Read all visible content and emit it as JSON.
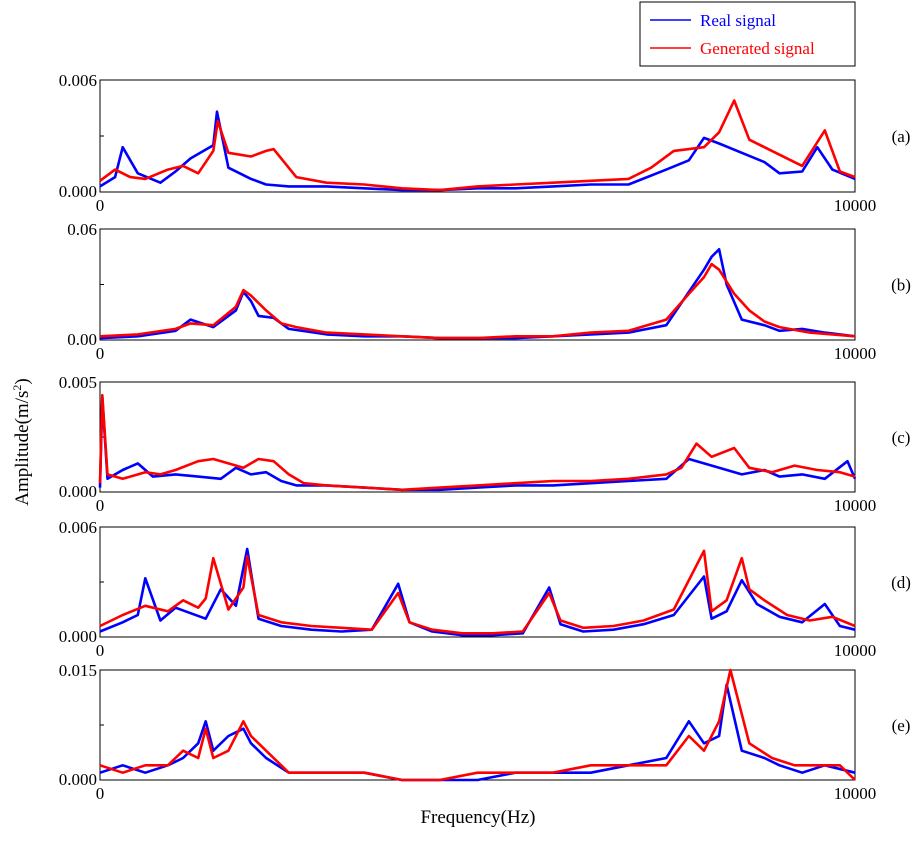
{
  "chart_data": {
    "type": "line",
    "xlabel": "Frequency(Hz)",
    "ylabel": "Amplitude(m/s",
    "ylabel_superscript": "2",
    "ylabel_suffix": ")",
    "legend": {
      "placement": "top-right",
      "entries": [
        {
          "name": "Real signal",
          "color": "#0000ff"
        },
        {
          "name": "Generated signal",
          "color": "#ff0000"
        }
      ]
    },
    "grid": false,
    "panels": [
      {
        "label": "(a)",
        "xlim": [
          0,
          10000
        ],
        "ylim": [
          0,
          0.006
        ],
        "x_ticks": [
          "0",
          "10000"
        ],
        "y_ticks": [
          "0.000",
          "0.006"
        ],
        "series": [
          {
            "name": "Real signal",
            "color": "#0000ff",
            "x": [
              0,
              200,
              300,
              500,
              800,
              1000,
              1200,
              1500,
              1550,
              1700,
              2000,
              2200,
              2500,
              3000,
              3500,
              4000,
              4500,
              5000,
              5500,
              6000,
              6500,
              7000,
              7500,
              7800,
              8000,
              8200,
              8500,
              8800,
              9000,
              9300,
              9500,
              9700,
              10000
            ],
            "y": [
              0.0003,
              0.0008,
              0.0024,
              0.001,
              0.0005,
              0.0011,
              0.0018,
              0.0025,
              0.0043,
              0.0013,
              0.0007,
              0.0004,
              0.0003,
              0.0003,
              0.0002,
              0.0001,
              0.0001,
              0.0002,
              0.0002,
              0.0003,
              0.0004,
              0.0004,
              0.0012,
              0.0017,
              0.0029,
              0.0026,
              0.0021,
              0.0016,
              0.001,
              0.0011,
              0.0024,
              0.0012,
              0.0007
            ]
          },
          {
            "name": "Generated signal",
            "color": "#ff0000",
            "x": [
              0,
              200,
              400,
              600,
              900,
              1100,
              1300,
              1500,
              1560,
              1700,
              2000,
              2200,
              2300,
              2600,
              3000,
              3500,
              4000,
              4500,
              5000,
              5500,
              6000,
              6500,
              7000,
              7300,
              7600,
              8000,
              8200,
              8400,
              8600,
              9000,
              9300,
              9600,
              9800,
              10000
            ],
            "y": [
              0.0006,
              0.0012,
              0.0008,
              0.0007,
              0.0012,
              0.0014,
              0.001,
              0.0022,
              0.0038,
              0.0021,
              0.0019,
              0.0022,
              0.0023,
              0.0008,
              0.0005,
              0.0004,
              0.0002,
              0.0001,
              0.0003,
              0.0004,
              0.0005,
              0.0006,
              0.0007,
              0.0013,
              0.0022,
              0.0024,
              0.0032,
              0.0049,
              0.0028,
              0.002,
              0.0014,
              0.0033,
              0.0011,
              0.0008
            ]
          }
        ]
      },
      {
        "label": "(b)",
        "xlim": [
          0,
          10000
        ],
        "ylim": [
          0,
          0.06
        ],
        "x_ticks": [
          "0",
          "10000"
        ],
        "y_ticks": [
          "0.00",
          "0.06"
        ],
        "series": [
          {
            "name": "Real signal",
            "color": "#0000ff",
            "x": [
              0,
              500,
              1000,
              1200,
              1500,
              1800,
              1900,
              2000,
              2100,
              2300,
              2500,
              3000,
              3500,
              4000,
              4500,
              5000,
              5500,
              6000,
              6500,
              7000,
              7500,
              7800,
              8000,
              8100,
              8200,
              8300,
              8500,
              8800,
              9000,
              9300,
              9600,
              10000
            ],
            "y": [
              0.001,
              0.002,
              0.005,
              0.011,
              0.007,
              0.016,
              0.026,
              0.021,
              0.013,
              0.012,
              0.006,
              0.003,
              0.002,
              0.002,
              0.001,
              0.001,
              0.001,
              0.002,
              0.003,
              0.004,
              0.008,
              0.026,
              0.038,
              0.045,
              0.049,
              0.03,
              0.011,
              0.008,
              0.005,
              0.006,
              0.004,
              0.002
            ]
          },
          {
            "name": "Generated signal",
            "color": "#ff0000",
            "x": [
              0,
              500,
              1000,
              1200,
              1500,
              1800,
              1900,
              2000,
              2200,
              2400,
              2600,
              3000,
              3500,
              4000,
              4500,
              5000,
              5500,
              6000,
              6500,
              7000,
              7500,
              7800,
              8000,
              8100,
              8200,
              8400,
              8600,
              8800,
              9000,
              9400,
              9700,
              10000
            ],
            "y": [
              0.002,
              0.003,
              0.006,
              0.009,
              0.008,
              0.018,
              0.027,
              0.024,
              0.016,
              0.009,
              0.007,
              0.004,
              0.003,
              0.002,
              0.001,
              0.001,
              0.002,
              0.002,
              0.004,
              0.005,
              0.011,
              0.025,
              0.034,
              0.041,
              0.038,
              0.025,
              0.016,
              0.01,
              0.007,
              0.004,
              0.003,
              0.002
            ]
          }
        ]
      },
      {
        "label": "(c)",
        "xlim": [
          0,
          10000
        ],
        "ylim": [
          0,
          0.005
        ],
        "x_ticks": [
          "0",
          "10000"
        ],
        "y_ticks": [
          "0.000",
          "0.005"
        ],
        "series": [
          {
            "name": "Real signal",
            "color": "#0000ff",
            "x": [
              0,
              30,
              100,
              300,
              500,
              700,
              1000,
              1300,
              1600,
              1800,
              2000,
              2200,
              2400,
              2600,
              3000,
              3500,
              4000,
              4500,
              5000,
              5500,
              6000,
              6500,
              7000,
              7500,
              7800,
              8000,
              8200,
              8500,
              8800,
              9000,
              9300,
              9600,
              9900,
              10000
            ],
            "y": [
              0.0002,
              0.0043,
              0.0006,
              0.001,
              0.0013,
              0.0007,
              0.0008,
              0.0007,
              0.0006,
              0.0011,
              0.0008,
              0.0009,
              0.0005,
              0.0003,
              0.0003,
              0.0002,
              0.0001,
              0.0001,
              0.0002,
              0.0003,
              0.0003,
              0.0004,
              0.0005,
              0.0006,
              0.0015,
              0.0013,
              0.0011,
              0.0008,
              0.001,
              0.0007,
              0.0008,
              0.0006,
              0.0014,
              0.0006
            ]
          },
          {
            "name": "Generated signal",
            "color": "#ff0000",
            "x": [
              0,
              30,
              100,
              300,
              600,
              800,
              1000,
              1300,
              1500,
              1700,
              1900,
              2100,
              2300,
              2500,
              2700,
              3000,
              3500,
              4000,
              4500,
              5000,
              5500,
              6000,
              6500,
              7000,
              7500,
              7700,
              7900,
              8100,
              8400,
              8600,
              8900,
              9200,
              9500,
              9800,
              10000
            ],
            "y": [
              0.0004,
              0.0044,
              0.0008,
              0.0006,
              0.0009,
              0.0008,
              0.001,
              0.0014,
              0.0015,
              0.0013,
              0.0011,
              0.0015,
              0.0014,
              0.0008,
              0.0004,
              0.0003,
              0.0002,
              0.0001,
              0.0002,
              0.0003,
              0.0004,
              0.0005,
              0.0005,
              0.0006,
              0.0008,
              0.0011,
              0.0022,
              0.0016,
              0.002,
              0.0011,
              0.0009,
              0.0012,
              0.001,
              0.0009,
              0.0007
            ]
          }
        ]
      },
      {
        "label": "(d)",
        "xlim": [
          0,
          10000
        ],
        "ylim": [
          0,
          0.006
        ],
        "x_ticks": [
          "0",
          "10000"
        ],
        "y_ticks": [
          "0.000",
          "0.006"
        ],
        "series": [
          {
            "name": "Real signal",
            "color": "#0000ff",
            "x": [
              0,
              300,
              500,
              600,
              800,
              1000,
              1200,
              1400,
              1600,
              1800,
              1950,
              2100,
              2400,
              2800,
              3200,
              3600,
              3950,
              4100,
              4400,
              4800,
              5200,
              5600,
              5950,
              6100,
              6400,
              6800,
              7200,
              7600,
              8000,
              8100,
              8300,
              8500,
              8700,
              9000,
              9300,
              9600,
              9800,
              10000
            ],
            "y": [
              0.0003,
              0.0008,
              0.0012,
              0.0032,
              0.0009,
              0.0016,
              0.0013,
              0.001,
              0.0026,
              0.0017,
              0.0048,
              0.001,
              0.0006,
              0.0004,
              0.0003,
              0.0004,
              0.0029,
              0.0008,
              0.0003,
              0.0001,
              0.0001,
              0.0002,
              0.0027,
              0.0007,
              0.0003,
              0.0004,
              0.0007,
              0.0012,
              0.0033,
              0.001,
              0.0014,
              0.0031,
              0.0018,
              0.0011,
              0.0008,
              0.0018,
              0.0006,
              0.0004
            ]
          },
          {
            "name": "Generated signal",
            "color": "#ff0000",
            "x": [
              0,
              300,
              600,
              900,
              1100,
              1300,
              1400,
              1500,
              1700,
              1900,
              1950,
              2100,
              2400,
              2800,
              3200,
              3600,
              3950,
              4100,
              4400,
              4800,
              5200,
              5600,
              5950,
              6100,
              6400,
              6800,
              7200,
              7600,
              8000,
              8100,
              8300,
              8500,
              8600,
              8800,
              9100,
              9400,
              9700,
              10000
            ],
            "y": [
              0.0006,
              0.0012,
              0.0017,
              0.0014,
              0.002,
              0.0016,
              0.0021,
              0.0043,
              0.0015,
              0.0027,
              0.0044,
              0.0012,
              0.0008,
              0.0006,
              0.0005,
              0.0004,
              0.0024,
              0.0008,
              0.0004,
              0.0002,
              0.0002,
              0.0003,
              0.0024,
              0.0009,
              0.0005,
              0.0006,
              0.0009,
              0.0015,
              0.0047,
              0.0014,
              0.002,
              0.0043,
              0.0026,
              0.002,
              0.0012,
              0.0009,
              0.0011,
              0.0006
            ]
          }
        ]
      },
      {
        "label": "(e)",
        "xlim": [
          0,
          10000
        ],
        "ylim": [
          0,
          0.015
        ],
        "x_ticks": [
          "0",
          "10000"
        ],
        "y_ticks": [
          "0.000",
          "0.015"
        ],
        "series": [
          {
            "name": "Real signal",
            "color": "#0000ff",
            "x": [
              0,
              300,
              600,
              900,
              1100,
              1300,
              1400,
              1500,
              1700,
              1900,
              2000,
              2200,
              2500,
              3000,
              3500,
              4000,
              4500,
              5000,
              5500,
              6000,
              6500,
              7000,
              7500,
              7800,
              8000,
              8200,
              8300,
              8500,
              8800,
              9000,
              9300,
              9600,
              10000
            ],
            "y": [
              0.001,
              0.002,
              0.001,
              0.002,
              0.003,
              0.005,
              0.008,
              0.004,
              0.006,
              0.007,
              0.005,
              0.003,
              0.001,
              0.001,
              0.001,
              0.0,
              0.0,
              0.0,
              0.001,
              0.001,
              0.001,
              0.002,
              0.003,
              0.008,
              0.005,
              0.006,
              0.013,
              0.004,
              0.003,
              0.002,
              0.001,
              0.002,
              0.001
            ]
          },
          {
            "name": "Generated signal",
            "color": "#ff0000",
            "x": [
              0,
              300,
              600,
              900,
              1100,
              1300,
              1400,
              1500,
              1700,
              1900,
              2000,
              2200,
              2500,
              3000,
              3500,
              4000,
              4500,
              5000,
              5500,
              6000,
              6500,
              7000,
              7500,
              7800,
              8000,
              8200,
              8350,
              8600,
              8900,
              9200,
              9500,
              9800,
              10000
            ],
            "y": [
              0.002,
              0.001,
              0.002,
              0.002,
              0.004,
              0.003,
              0.007,
              0.003,
              0.004,
              0.008,
              0.006,
              0.004,
              0.001,
              0.001,
              0.001,
              0.0,
              0.0,
              0.001,
              0.001,
              0.001,
              0.002,
              0.002,
              0.002,
              0.006,
              0.004,
              0.008,
              0.015,
              0.005,
              0.003,
              0.002,
              0.002,
              0.002,
              0.0
            ]
          }
        ]
      }
    ]
  }
}
